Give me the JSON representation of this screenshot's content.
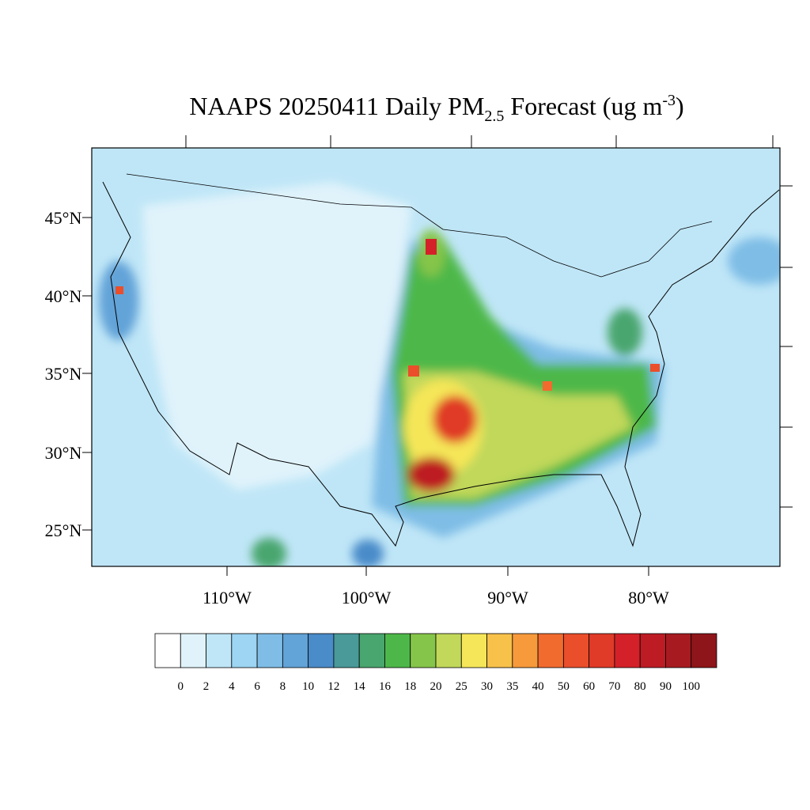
{
  "title": {
    "main": "NAAPS 20250411 Daily PM",
    "subscript": "2.5",
    "middle": " Forecast (ug m",
    "superscript": "-3",
    "end": ")"
  },
  "lat_labels": [
    "45°N",
    "40°N",
    "35°N",
    "30°N",
    "25°N"
  ],
  "lon_labels": [
    "110°W",
    "100°W",
    "90°W",
    "80°W"
  ],
  "colorbar": {
    "labels": [
      "0",
      "2",
      "4",
      "6",
      "8",
      "10",
      "12",
      "14",
      "16",
      "18",
      "20",
      "25",
      "30",
      "35",
      "40",
      "50",
      "60",
      "70",
      "80",
      "90",
      "100"
    ],
    "colors": [
      "#ffffff",
      "#e0f3fb",
      "#bfe6f7",
      "#9dd5f2",
      "#7fbde6",
      "#62a3d8",
      "#4a8bc9",
      "#4a9a9a",
      "#48a66e",
      "#4db849",
      "#85c54a",
      "#c1d85a",
      "#f5e659",
      "#f8c14a",
      "#f79a3c",
      "#f26b2e",
      "#ea4e2b",
      "#e03a28",
      "#d42129",
      "#bd1c24",
      "#a71b20",
      "#8e1519"
    ]
  }
}
